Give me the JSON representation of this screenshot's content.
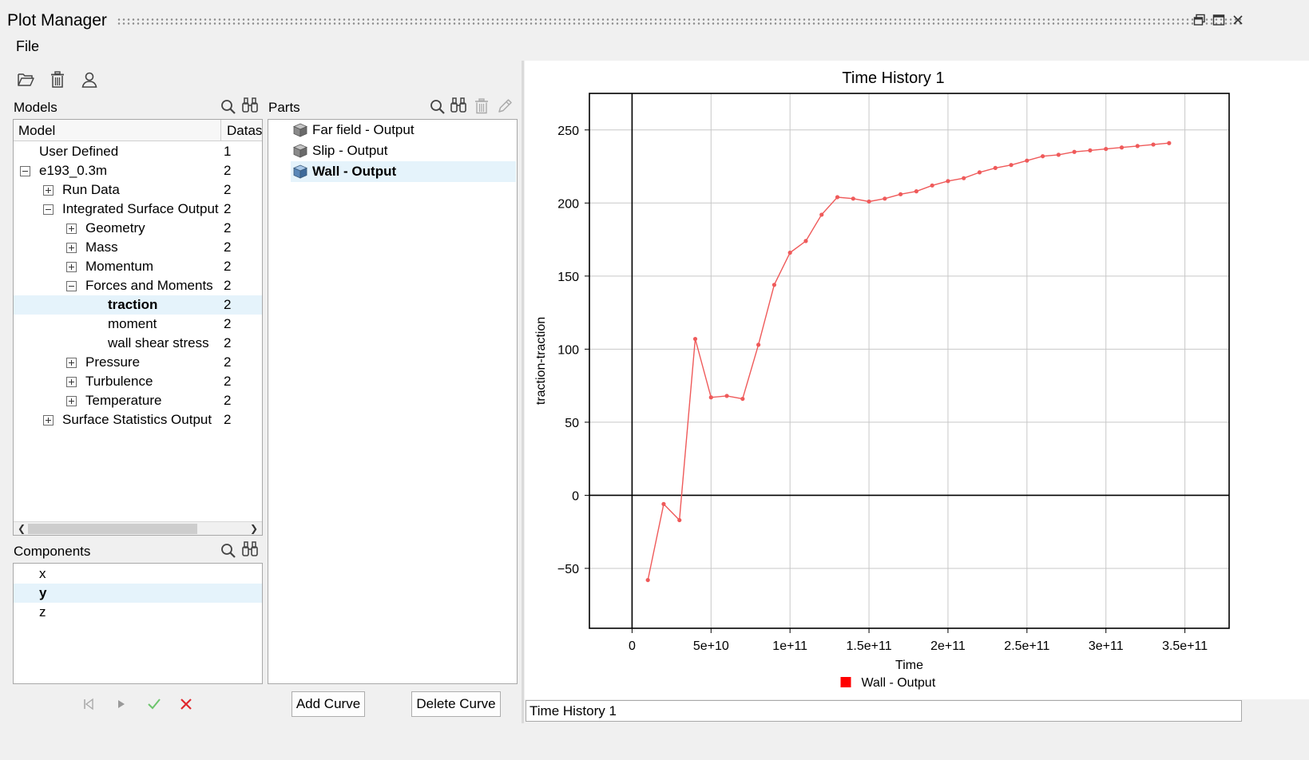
{
  "window": {
    "title": "Plot Manager",
    "icons": [
      "restore-icon",
      "maximize-icon",
      "close-icon"
    ]
  },
  "menu": {
    "file": "File"
  },
  "toolbar": {
    "icons": [
      "open-folder-icon",
      "trash-icon",
      "user-icon"
    ]
  },
  "models": {
    "label": "Models",
    "columns": {
      "model": "Model",
      "datasets": "Datas"
    },
    "rows": [
      {
        "label": "User Defined",
        "count": "1"
      },
      {
        "label": "e193_0.3m",
        "count": "2"
      },
      {
        "label": "Run Data",
        "count": "2"
      },
      {
        "label": "Integrated Surface Output",
        "count": "2"
      },
      {
        "label": "Geometry",
        "count": "2"
      },
      {
        "label": "Mass",
        "count": "2"
      },
      {
        "label": "Momentum",
        "count": "2"
      },
      {
        "label": "Forces and Moments",
        "count": "2"
      },
      {
        "label": "traction",
        "count": "2"
      },
      {
        "label": "moment",
        "count": "2"
      },
      {
        "label": "wall shear stress",
        "count": "2"
      },
      {
        "label": "Pressure",
        "count": "2"
      },
      {
        "label": "Turbulence",
        "count": "2"
      },
      {
        "label": "Temperature",
        "count": "2"
      },
      {
        "label": "Surface Statistics Output",
        "count": "2"
      }
    ]
  },
  "parts": {
    "label": "Parts",
    "items": [
      {
        "label": "Far field - Output"
      },
      {
        "label": "Slip - Output"
      },
      {
        "label": "Wall - Output"
      }
    ]
  },
  "components": {
    "label": "Components",
    "items": [
      {
        "label": "x"
      },
      {
        "label": "y"
      },
      {
        "label": "z"
      }
    ]
  },
  "buttons": {
    "add_curve": "Add Curve",
    "delete_curve": "Delete Curve"
  },
  "plot_title_field": {
    "value": "Time History 1"
  },
  "colors": {
    "curve": "#ef5a5a",
    "legend_swatch": "#ff0000",
    "selection": "#e5f3fb"
  },
  "chart_data": {
    "type": "line",
    "title": "Time History 1",
    "xlabel": "Time",
    "ylabel": "traction-traction",
    "xlim": [
      -27000000000.0,
      378000000000.0
    ],
    "ylim": [
      -91,
      275
    ],
    "x_ticks": [
      {
        "value": 0,
        "label": "0"
      },
      {
        "value": 50000000000.0,
        "label": "5e+10"
      },
      {
        "value": 100000000000.0,
        "label": "1e+11"
      },
      {
        "value": 150000000000.0,
        "label": "1.5e+11"
      },
      {
        "value": 200000000000.0,
        "label": "2e+11"
      },
      {
        "value": 250000000000.0,
        "label": "2.5e+11"
      },
      {
        "value": 300000000000.0,
        "label": "3e+11"
      },
      {
        "value": 350000000000.0,
        "label": "3.5e+11"
      }
    ],
    "y_ticks": [
      {
        "value": 250,
        "label": "250"
      },
      {
        "value": 200,
        "label": "200"
      },
      {
        "value": 150,
        "label": "150"
      },
      {
        "value": 100,
        "label": "100"
      },
      {
        "value": 50,
        "label": "50"
      },
      {
        "value": 0,
        "label": "0"
      },
      {
        "value": -50,
        "label": "−50"
      }
    ],
    "grid": true,
    "legend": {
      "position": "bottom",
      "entries": [
        "Wall - Output"
      ]
    },
    "series": [
      {
        "name": "Wall - Output",
        "x": [
          10000000000.0,
          20000000000.0,
          30000000000.0,
          40000000000.0,
          50000000000.0,
          60000000000.0,
          70000000000.0,
          80000000000.0,
          90000000000.0,
          100000000000.0,
          110000000000.0,
          120000000000.0,
          130000000000.0,
          140000000000.0,
          150000000000.0,
          160000000000.0,
          170000000000.0,
          180000000000.0,
          190000000000.0,
          200000000000.0,
          210000000000.0,
          220000000000.0,
          230000000000.0,
          240000000000.0,
          250000000000.0,
          260000000000.0,
          270000000000.0,
          280000000000.0,
          290000000000.0,
          300000000000.0,
          310000000000.0,
          320000000000.0,
          330000000000.0,
          340000000000.0
        ],
        "y": [
          -58,
          -6,
          -17,
          107,
          67,
          68,
          66,
          103,
          144,
          166,
          174,
          192,
          204,
          203,
          201,
          203,
          206,
          208,
          212,
          215,
          217,
          221,
          224,
          226,
          229,
          232,
          233,
          235,
          236,
          237,
          238,
          239,
          240,
          241
        ]
      }
    ]
  }
}
